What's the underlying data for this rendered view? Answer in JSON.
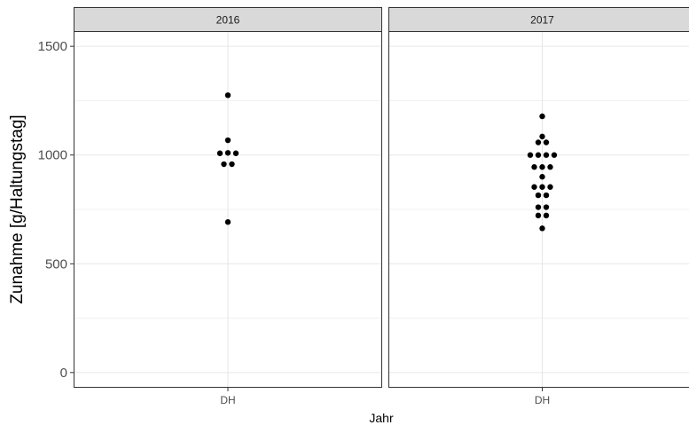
{
  "chart_data": {
    "type": "scatter",
    "title": "",
    "xlabel": "Jahr",
    "ylabel": "Zunahme [g/Haltungstag]",
    "ylim": [
      -70,
      1570
    ],
    "y_ticks": [
      0,
      500,
      1000,
      1500
    ],
    "y_tick_labels": [
      "0",
      "500",
      "1000",
      "1500"
    ],
    "grid": true,
    "facets": [
      {
        "label": "2016",
        "category": "DH",
        "points": [
          {
            "x": 0,
            "y": 1275
          },
          {
            "x": 0,
            "y": 1068
          },
          {
            "x": -1,
            "y": 1008
          },
          {
            "x": 0,
            "y": 1010
          },
          {
            "x": 1,
            "y": 1008
          },
          {
            "x": -0.5,
            "y": 958
          },
          {
            "x": 0.5,
            "y": 958
          },
          {
            "x": 0,
            "y": 692
          }
        ]
      },
      {
        "label": "2017",
        "category": "DH",
        "points": [
          {
            "x": 0,
            "y": 1178
          },
          {
            "x": 0,
            "y": 1085
          },
          {
            "x": -0.5,
            "y": 1058
          },
          {
            "x": 0.5,
            "y": 1058
          },
          {
            "x": -1.5,
            "y": 1000
          },
          {
            "x": -0.5,
            "y": 1000
          },
          {
            "x": 0.5,
            "y": 1000
          },
          {
            "x": 1.5,
            "y": 1000
          },
          {
            "x": -1,
            "y": 945
          },
          {
            "x": 0,
            "y": 945
          },
          {
            "x": 1,
            "y": 945
          },
          {
            "x": 0,
            "y": 900
          },
          {
            "x": -1,
            "y": 853
          },
          {
            "x": 0,
            "y": 853
          },
          {
            "x": 1,
            "y": 853
          },
          {
            "x": -0.5,
            "y": 815
          },
          {
            "x": 0.5,
            "y": 815
          },
          {
            "x": -0.5,
            "y": 760
          },
          {
            "x": 0.5,
            "y": 760
          },
          {
            "x": -0.5,
            "y": 722
          },
          {
            "x": 0.5,
            "y": 722
          },
          {
            "x": 0,
            "y": 663
          }
        ]
      }
    ]
  }
}
